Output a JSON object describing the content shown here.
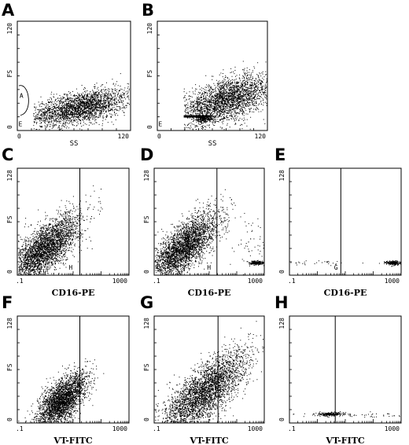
{
  "chart_data": [
    {
      "panel": "A",
      "type": "scatter",
      "xlabel": "SS",
      "ylabel": "FS",
      "xticks": [
        "0",
        "120"
      ],
      "yticks": [
        "0",
        "120"
      ],
      "xlim": [
        0,
        128
      ],
      "ylim": [
        0,
        128
      ],
      "gate_labels": [
        "A",
        "E"
      ],
      "clusters": [
        {
          "cx": 70,
          "cy": 27,
          "sx": 28,
          "sy": 9,
          "n": 2600,
          "tilt": 0.2,
          "xmin": 18
        }
      ]
    },
    {
      "panel": "B",
      "type": "scatter",
      "xlabel": "SS",
      "ylabel": "FS",
      "xticks": [
        "0",
        "120"
      ],
      "yticks": [
        "0",
        "120"
      ],
      "xlim": [
        0,
        128
      ],
      "ylim": [
        0,
        128
      ],
      "gate_labels": [
        "P",
        "E"
      ],
      "clusters": [
        {
          "cx": 80,
          "cy": 36,
          "sx": 27,
          "sy": 12,
          "n": 2800,
          "tilt": 0.3,
          "xmin": 30
        },
        {
          "cx": 54,
          "cy": 14,
          "sx": 6,
          "sy": 2,
          "n": 220,
          "tilt": 0,
          "xmin": 40
        }
      ]
    },
    {
      "panel": "C",
      "type": "scatter",
      "xlabel": "CD16-PE",
      "ylabel": "FS",
      "xscale": "log",
      "xticks": [
        ".1",
        "1000"
      ],
      "yticks": [
        "0",
        "128"
      ],
      "xlim": [
        0.1,
        1000
      ],
      "ylim": [
        0,
        128
      ],
      "gate_labels": [
        "H"
      ],
      "clusters": [
        {
          "cx": 1.0,
          "cy": 32,
          "sx": 0.28,
          "sy": 14,
          "n": 3200,
          "tilt": 3
        }
      ]
    },
    {
      "panel": "D",
      "type": "scatter",
      "xlabel": "CD16-PE",
      "ylabel": "FS",
      "xscale": "log",
      "xticks": [
        ".1",
        "1000"
      ],
      "yticks": [
        "0",
        "128"
      ],
      "xlim": [
        0.1,
        1000
      ],
      "ylim": [
        0,
        128
      ],
      "gate_labels": [
        "H"
      ],
      "clusters": [
        {
          "cx": 1.2,
          "cy": 34,
          "sx": 0.28,
          "sy": 14,
          "n": 3200,
          "tilt": 3
        },
        {
          "cx": 500,
          "cy": 15,
          "sx": 0.06,
          "sy": 1.2,
          "n": 260,
          "tilt": 0
        },
        {
          "cx": 300,
          "cy": 40,
          "sx": 0.2,
          "sy": 18,
          "n": 60,
          "tilt": 0
        }
      ]
    },
    {
      "panel": "E",
      "type": "scatter",
      "xlabel": "CD16-PE",
      "ylabel": "",
      "xscale": "log",
      "xticks": [
        ".1",
        "1000"
      ],
      "yticks": [
        "0",
        "128"
      ],
      "xlim": [
        0.1,
        1000
      ],
      "ylim": [
        0,
        128
      ],
      "gate_labels": [
        "G"
      ],
      "clusters": [
        {
          "cx": 500,
          "cy": 15,
          "sx": 0.06,
          "sy": 1.2,
          "n": 240,
          "tilt": 0
        },
        {
          "cx": 1.0,
          "cy": 15,
          "sx": 0.4,
          "sy": 1.5,
          "n": 40,
          "tilt": 0
        }
      ]
    },
    {
      "panel": "F",
      "type": "scatter",
      "xlabel": "VT-FITC",
      "ylabel": "FS",
      "xscale": "log",
      "xticks": [
        ".1",
        "1000"
      ],
      "yticks": [
        "0",
        "128"
      ],
      "xlim": [
        0.1,
        1000
      ],
      "ylim": [
        0,
        128
      ],
      "gate_labels": [
        "D"
      ],
      "clusters": [
        {
          "cx": 4,
          "cy": 28,
          "sx": 0.2,
          "sy": 12,
          "n": 2800,
          "tilt": 3
        }
      ]
    },
    {
      "panel": "G",
      "type": "scatter",
      "xlabel": "VT-FITC",
      "ylabel": "FS",
      "xscale": "log",
      "xticks": [
        ".1",
        "1000"
      ],
      "yticks": [
        "0",
        "128"
      ],
      "xlim": [
        0.1,
        1000
      ],
      "ylim": [
        0,
        128
      ],
      "gate_labels": [
        "D"
      ],
      "clusters": [
        {
          "cx": 6,
          "cy": 36,
          "sx": 0.35,
          "sy": 16,
          "n": 3300,
          "tilt": 3
        }
      ]
    },
    {
      "panel": "H",
      "type": "scatter",
      "xlabel": "VT-FITC",
      "ylabel": "",
      "xscale": "log",
      "xticks": [
        ".1",
        "1000"
      ],
      "yticks": [
        "0",
        "128"
      ],
      "xlim": [
        0.1,
        1000
      ],
      "ylim": [
        0,
        128
      ],
      "gate_labels": [
        "C"
      ],
      "clusters": [
        {
          "cx": 3,
          "cy": 11,
          "sx": 0.12,
          "sy": 1.2,
          "n": 200,
          "tilt": 0
        },
        {
          "cx": 20,
          "cy": 10,
          "sx": 0.5,
          "sy": 1.2,
          "n": 60,
          "tilt": 0
        }
      ]
    }
  ]
}
